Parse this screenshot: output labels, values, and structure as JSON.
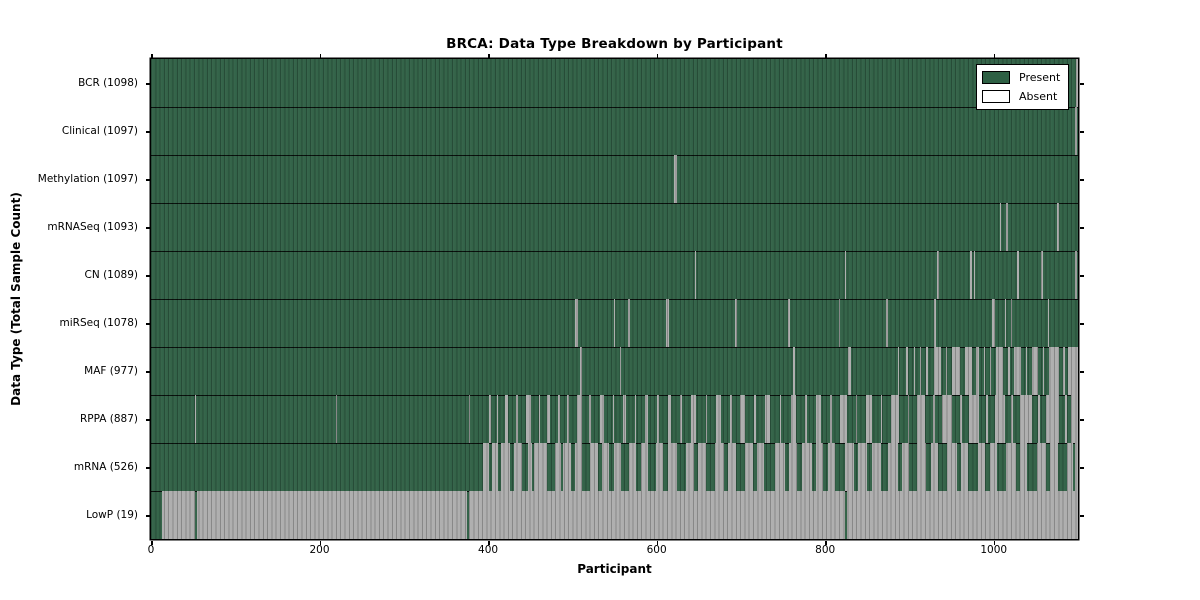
{
  "chart_data": {
    "type": "heatmap",
    "title": "BRCA: Data Type Breakdown by Participant",
    "xlabel": "Participant",
    "ylabel": "Data Type (Total Sample Count)",
    "x_range": [
      0,
      1100
    ],
    "x_ticks": [
      0,
      200,
      400,
      600,
      800,
      1000
    ],
    "grid": false,
    "legend_position": "upper right",
    "legend_entries": [
      {
        "label": "Present",
        "color": "#2e6044"
      },
      {
        "label": "Absent",
        "color": "#ffffff"
      }
    ],
    "colors": {
      "present_fill": "#326247",
      "absent_fill": "#aeaeae",
      "bar_edge_overlay": "rgba(0,0,0,0.22)",
      "axis": "#000000",
      "background": "#ffffff"
    },
    "rows": [
      {
        "name": "BCR",
        "count": 1098,
        "label": "BCR (1098)",
        "absent": [
          [
            1098,
            1100
          ]
        ]
      },
      {
        "name": "Clinical",
        "count": 1097,
        "label": "Clinical (1097)",
        "absent": [
          [
            1096,
            1099
          ]
        ]
      },
      {
        "name": "Methylation",
        "count": 1097,
        "label": "Methylation (1097)",
        "absent": [
          [
            621,
            624
          ]
        ]
      },
      {
        "name": "mRNASeq",
        "count": 1093,
        "label": "mRNASeq (1093)",
        "absent": [
          [
            1007,
            1009
          ],
          [
            1015,
            1017
          ],
          [
            1075,
            1078
          ]
        ]
      },
      {
        "name": "CN",
        "count": 1089,
        "label": "CN (1089)",
        "absent": [
          [
            645,
            647
          ],
          [
            823,
            825
          ],
          [
            933,
            935
          ],
          [
            972,
            974
          ],
          [
            976,
            978
          ],
          [
            1028,
            1030
          ],
          [
            1056,
            1058
          ],
          [
            1097,
            1099
          ]
        ]
      },
      {
        "name": "miRSeq",
        "count": 1078,
        "label": "miRSeq (1078)",
        "absent": [
          [
            503,
            507
          ],
          [
            549,
            551
          ],
          [
            566,
            568
          ],
          [
            611,
            615
          ],
          [
            693,
            695
          ],
          [
            756,
            758
          ],
          [
            816,
            818
          ],
          [
            872,
            874
          ],
          [
            929,
            931
          ],
          [
            998,
            1002
          ],
          [
            1013,
            1015
          ],
          [
            1020,
            1022
          ],
          [
            1064,
            1066
          ]
        ]
      },
      {
        "name": "MAF",
        "count": 977,
        "label": "MAF (977)",
        "absent": [
          [
            509,
            511
          ],
          [
            556,
            558
          ],
          [
            762,
            764
          ],
          [
            827,
            831
          ],
          [
            886,
            888
          ],
          [
            896,
            898
          ],
          [
            905,
            907
          ],
          [
            912,
            914
          ],
          [
            920,
            922
          ],
          [
            929,
            937
          ],
          [
            943,
            945
          ],
          [
            950,
            960
          ],
          [
            966,
            974
          ],
          [
            979,
            982
          ],
          [
            988,
            990
          ],
          [
            995,
            997
          ],
          [
            1003,
            1011
          ],
          [
            1017,
            1019
          ],
          [
            1024,
            1032
          ],
          [
            1038,
            1040
          ],
          [
            1046,
            1052
          ],
          [
            1058,
            1060
          ],
          [
            1066,
            1078
          ],
          [
            1082,
            1084
          ],
          [
            1088,
            1100
          ]
        ]
      },
      {
        "name": "RPPA",
        "count": 887,
        "label": "RPPA (887)",
        "absent": [
          [
            52,
            53
          ],
          [
            219,
            220
          ],
          [
            377,
            378
          ],
          [
            401,
            403
          ],
          [
            410,
            412
          ],
          [
            420,
            424
          ],
          [
            433,
            435
          ],
          [
            445,
            451
          ],
          [
            460,
            462
          ],
          [
            470,
            474
          ],
          [
            483,
            485
          ],
          [
            494,
            496
          ],
          [
            505,
            511
          ],
          [
            520,
            522
          ],
          [
            533,
            537
          ],
          [
            548,
            550
          ],
          [
            560,
            564
          ],
          [
            574,
            576
          ],
          [
            586,
            590
          ],
          [
            601,
            603
          ],
          [
            613,
            617
          ],
          [
            628,
            630
          ],
          [
            641,
            647
          ],
          [
            658,
            660
          ],
          [
            670,
            676
          ],
          [
            687,
            689
          ],
          [
            699,
            705
          ],
          [
            716,
            718
          ],
          [
            729,
            735
          ],
          [
            746,
            748
          ],
          [
            759,
            765
          ],
          [
            776,
            778
          ],
          [
            789,
            795
          ],
          [
            806,
            808
          ],
          [
            818,
            826
          ],
          [
            836,
            838
          ],
          [
            848,
            856
          ],
          [
            866,
            868
          ],
          [
            878,
            888
          ],
          [
            898,
            900
          ],
          [
            909,
            919
          ],
          [
            928,
            930
          ],
          [
            939,
            951
          ],
          [
            960,
            962
          ],
          [
            971,
            983
          ],
          [
            991,
            993
          ],
          [
            1001,
            1013
          ],
          [
            1021,
            1023
          ],
          [
            1031,
            1045
          ],
          [
            1053,
            1055
          ],
          [
            1062,
            1078
          ],
          [
            1085,
            1087
          ],
          [
            1092,
            1100
          ]
        ]
      },
      {
        "name": "mRNA",
        "count": 526,
        "label": "mRNA (526)",
        "absent": [
          [
            394,
            401
          ],
          [
            405,
            412
          ],
          [
            415,
            426
          ],
          [
            431,
            440
          ],
          [
            447,
            452
          ],
          [
            455,
            470
          ],
          [
            479,
            486
          ],
          [
            489,
            498
          ],
          [
            503,
            512
          ],
          [
            521,
            530
          ],
          [
            535,
            544
          ],
          [
            549,
            558
          ],
          [
            567,
            576
          ],
          [
            581,
            590
          ],
          [
            599,
            608
          ],
          [
            613,
            624
          ],
          [
            635,
            644
          ],
          [
            649,
            658
          ],
          [
            669,
            680
          ],
          [
            685,
            694
          ],
          [
            705,
            714
          ],
          [
            719,
            728
          ],
          [
            741,
            752
          ],
          [
            757,
            766
          ],
          [
            773,
            784
          ],
          [
            789,
            798
          ],
          [
            803,
            812
          ],
          [
            823,
            834
          ],
          [
            839,
            850
          ],
          [
            855,
            866
          ],
          [
            875,
            886
          ],
          [
            891,
            900
          ],
          [
            909,
            920
          ],
          [
            925,
            934
          ],
          [
            945,
            956
          ],
          [
            961,
            970
          ],
          [
            981,
            990
          ],
          [
            995,
            1004
          ],
          [
            1015,
            1026
          ],
          [
            1031,
            1040
          ],
          [
            1051,
            1062
          ],
          [
            1067,
            1076
          ],
          [
            1087,
            1094
          ],
          [
            1097,
            1100
          ]
        ]
      },
      {
        "name": "LowP",
        "count": 19,
        "label": "LowP (19)",
        "absent": [
          [
            13,
            52
          ],
          [
            54,
            375
          ],
          [
            377,
            824
          ],
          [
            826,
            1100
          ]
        ]
      }
    ]
  }
}
